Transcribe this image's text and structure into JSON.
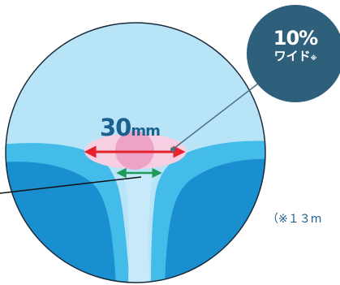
{
  "lens": {
    "width_value": "30",
    "width_unit": "mm"
  },
  "badge": {
    "percent": "10%",
    "wide_label": "ワイド",
    "note_mark": "※"
  },
  "footnote": {
    "text": "（※１３m"
  },
  "colors": {
    "outer_zone": "#b8e4f8",
    "side_zone": "#44bce9",
    "side_zone_dark": "#1a8fd0",
    "corridor": "#c7e9fa",
    "reading_area": "#f6cfe3",
    "focus_spot": "#eca3c5",
    "width_arrow": "#e4232d",
    "corridor_arrow": "#1f9a5a",
    "badge": "#2e5f7b",
    "accent_text": "#1d5f8f"
  }
}
